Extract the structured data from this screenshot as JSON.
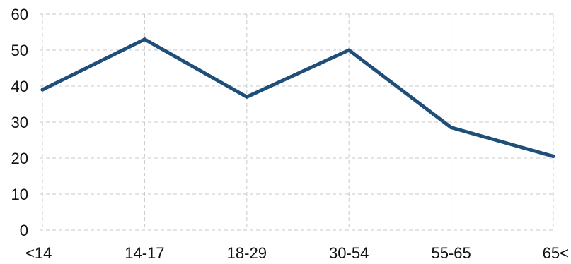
{
  "chart_data": {
    "type": "line",
    "categories": [
      "<14",
      "14-17",
      "18-29",
      "30-54",
      "55-65",
      "65<"
    ],
    "series": [
      {
        "values": [
          39,
          53,
          37,
          50,
          28.5,
          20.5
        ]
      }
    ],
    "ylim": [
      0,
      60
    ],
    "y_ticks": [
      "0",
      "10",
      "20",
      "30",
      "40",
      "50",
      "60"
    ],
    "grid": true,
    "legend": "none",
    "colors": {
      "line": "#1f4e79",
      "grid": "#c9c9c9",
      "axis_text": "#111111"
    }
  }
}
